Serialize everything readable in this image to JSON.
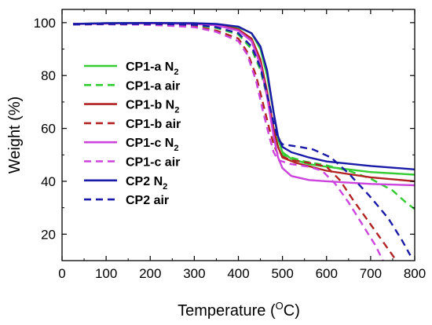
{
  "chart_data": {
    "type": "line",
    "xlabel": "Temperature (",
    "xlabel_unit_sup": "O",
    "xlabel_unit_tail": "C)",
    "ylabel": "Weight (%)",
    "xlim": [
      0,
      800
    ],
    "ylim": [
      10,
      105
    ],
    "xticks": [
      "0",
      "100",
      "200",
      "300",
      "400",
      "500",
      "600",
      "700",
      "800"
    ],
    "yticks": [
      "20",
      "40",
      "60",
      "80",
      "100"
    ],
    "xtick_values": [
      0,
      100,
      200,
      300,
      400,
      500,
      600,
      700,
      800
    ],
    "ytick_values": [
      20,
      40,
      60,
      80,
      100
    ],
    "grid": false,
    "legend_position": "left",
    "series": [
      {
        "name": "CP1-a N",
        "sub": "2",
        "color": "#33cc33",
        "dash": "solid",
        "points": [
          [
            25,
            99.5
          ],
          [
            100,
            99.8
          ],
          [
            200,
            99.9
          ],
          [
            300,
            99.7
          ],
          [
            350,
            99.3
          ],
          [
            400,
            98.2
          ],
          [
            430,
            96
          ],
          [
            450,
            90
          ],
          [
            465,
            80
          ],
          [
            480,
            66
          ],
          [
            490,
            56
          ],
          [
            500,
            51
          ],
          [
            520,
            48.5
          ],
          [
            560,
            46.5
          ],
          [
            600,
            45.5
          ],
          [
            700,
            43.5
          ],
          [
            800,
            42.5
          ]
        ]
      },
      {
        "name": "CP1-a air",
        "sub": "",
        "color": "#33cc33",
        "dash": "dashed",
        "points": [
          [
            25,
            99.3
          ],
          [
            100,
            99.5
          ],
          [
            200,
            99.5
          ],
          [
            300,
            99
          ],
          [
            350,
            98
          ],
          [
            400,
            95.5
          ],
          [
            430,
            90
          ],
          [
            450,
            82
          ],
          [
            465,
            72
          ],
          [
            480,
            60
          ],
          [
            490,
            53
          ],
          [
            500,
            50
          ],
          [
            550,
            47.5
          ],
          [
            600,
            46
          ],
          [
            650,
            44
          ],
          [
            700,
            41
          ],
          [
            750,
            36.5
          ],
          [
            780,
            32
          ],
          [
            800,
            29.5
          ]
        ]
      },
      {
        "name": "CP1-b N",
        "sub": "2",
        "color": "#b22222",
        "dash": "solid",
        "points": [
          [
            25,
            99.5
          ],
          [
            100,
            99.7
          ],
          [
            200,
            99.8
          ],
          [
            300,
            99.6
          ],
          [
            350,
            99.1
          ],
          [
            400,
            97.5
          ],
          [
            430,
            94
          ],
          [
            450,
            86
          ],
          [
            465,
            74
          ],
          [
            480,
            60
          ],
          [
            490,
            53
          ],
          [
            500,
            49
          ],
          [
            530,
            47
          ],
          [
            600,
            44
          ],
          [
            700,
            41.5
          ],
          [
            800,
            40
          ]
        ]
      },
      {
        "name": "CP1-b air",
        "sub": "",
        "color": "#b22222",
        "dash": "dashed",
        "points": [
          [
            25,
            99.3
          ],
          [
            100,
            99.4
          ],
          [
            200,
            99.2
          ],
          [
            300,
            98.5
          ],
          [
            350,
            97
          ],
          [
            400,
            94
          ],
          [
            420,
            89
          ],
          [
            440,
            80
          ],
          [
            455,
            70
          ],
          [
            470,
            60
          ],
          [
            480,
            54
          ],
          [
            490,
            50
          ],
          [
            520,
            48
          ],
          [
            560,
            47
          ],
          [
            600,
            45.5
          ],
          [
            630,
            40.5
          ],
          [
            660,
            33
          ],
          [
            690,
            26
          ],
          [
            720,
            19
          ],
          [
            750,
            12
          ],
          [
            758,
            10
          ]
        ]
      },
      {
        "name": "CP1-c N",
        "sub": "2",
        "color": "#cc44dd",
        "dash": "solid",
        "points": [
          [
            25,
            99.5
          ],
          [
            100,
            99.7
          ],
          [
            200,
            99.8
          ],
          [
            300,
            99.5
          ],
          [
            350,
            99
          ],
          [
            400,
            97
          ],
          [
            430,
            93
          ],
          [
            450,
            84
          ],
          [
            465,
            72
          ],
          [
            480,
            57
          ],
          [
            490,
            49
          ],
          [
            500,
            45
          ],
          [
            520,
            42
          ],
          [
            560,
            40.5
          ],
          [
            600,
            40
          ],
          [
            700,
            39
          ],
          [
            800,
            38.5
          ]
        ]
      },
      {
        "name": "CP1-c air",
        "sub": "",
        "color": "#cc44dd",
        "dash": "dashed",
        "points": [
          [
            25,
            99.3
          ],
          [
            100,
            99.4
          ],
          [
            200,
            99.2
          ],
          [
            300,
            98.3
          ],
          [
            350,
            96.5
          ],
          [
            400,
            93
          ],
          [
            420,
            88
          ],
          [
            440,
            78
          ],
          [
            455,
            67
          ],
          [
            470,
            57
          ],
          [
            480,
            51
          ],
          [
            490,
            48
          ],
          [
            520,
            46.5
          ],
          [
            560,
            45.5
          ],
          [
            590,
            44
          ],
          [
            620,
            39
          ],
          [
            650,
            32
          ],
          [
            680,
            24
          ],
          [
            710,
            16
          ],
          [
            728,
            10
          ]
        ]
      },
      {
        "name": "CP2 N",
        "sub": "2",
        "color": "#1a1aa8",
        "dash": "solid",
        "points": [
          [
            25,
            99.5
          ],
          [
            100,
            99.8
          ],
          [
            200,
            99.9
          ],
          [
            300,
            99.8
          ],
          [
            350,
            99.5
          ],
          [
            400,
            98.5
          ],
          [
            430,
            96
          ],
          [
            450,
            91
          ],
          [
            465,
            82
          ],
          [
            480,
            66
          ],
          [
            490,
            57
          ],
          [
            500,
            53
          ],
          [
            520,
            51
          ],
          [
            560,
            49
          ],
          [
            600,
            47.5
          ],
          [
            700,
            45.8
          ],
          [
            800,
            44.5
          ]
        ]
      },
      {
        "name": "CP2 air",
        "sub": "",
        "color": "#1a1aa8",
        "dash": "dashed",
        "points": [
          [
            25,
            99.3
          ],
          [
            100,
            99.5
          ],
          [
            200,
            99.5
          ],
          [
            300,
            99.2
          ],
          [
            350,
            98.3
          ],
          [
            400,
            96
          ],
          [
            430,
            91
          ],
          [
            450,
            83
          ],
          [
            465,
            73
          ],
          [
            480,
            62
          ],
          [
            490,
            56
          ],
          [
            500,
            54
          ],
          [
            540,
            53
          ],
          [
            570,
            52
          ],
          [
            610,
            49
          ],
          [
            650,
            43
          ],
          [
            700,
            34
          ],
          [
            740,
            26
          ],
          [
            770,
            18
          ],
          [
            790,
            12
          ]
        ]
      }
    ]
  }
}
